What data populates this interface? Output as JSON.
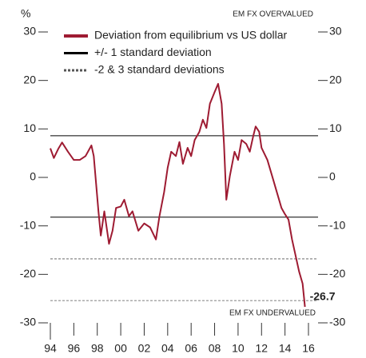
{
  "chart_data": {
    "type": "line",
    "y_unit": "%",
    "top_note": "EM FX OVERVALUED",
    "bottom_note": "EM FX UNDERVALUED",
    "x": [
      1994.0,
      1994.3,
      1994.7,
      1995.0,
      1995.5,
      1996.0,
      1996.5,
      1997.0,
      1997.5,
      1997.7,
      1997.9,
      1998.1,
      1998.3,
      1998.6,
      1999.0,
      1999.3,
      1999.6,
      2000.0,
      2000.3,
      2000.7,
      2001.0,
      2001.5,
      2002.0,
      2002.5,
      2003.0,
      2003.3,
      2003.7,
      2004.0,
      2004.3,
      2004.7,
      2005.0,
      2005.3,
      2005.7,
      2006.0,
      2006.3,
      2006.7,
      2007.0,
      2007.3,
      2007.6,
      2008.0,
      2008.3,
      2008.6,
      2008.8,
      2009.0,
      2009.3,
      2009.7,
      2010.0,
      2010.3,
      2010.7,
      2011.0,
      2011.3,
      2011.5,
      2011.8,
      2012.0,
      2012.5,
      2013.0,
      2013.3,
      2013.7,
      2014.0,
      2014.3,
      2014.6,
      2014.9,
      2015.2,
      2015.5,
      2015.7
    ],
    "series": [
      {
        "name": "Deviation from equilibrium vs US dollar",
        "color": "#9e1b32",
        "values": [
          6,
          4,
          6,
          7.2,
          5.3,
          3.6,
          3.6,
          4.4,
          6.6,
          4.4,
          -1.3,
          -7,
          -12,
          -7,
          -13.7,
          -11,
          -6.3,
          -6,
          -4.6,
          -8,
          -7,
          -11,
          -9.5,
          -10.3,
          -12.8,
          -8,
          -3,
          2,
          5.3,
          4.4,
          7.3,
          2.8,
          6.1,
          4.4,
          7.7,
          9.4,
          11.9,
          10.2,
          15.2,
          17.6,
          19.3,
          15.2,
          6.9,
          -4.6,
          0.3,
          5.3,
          3.6,
          7.7,
          6.9,
          5.3,
          8.6,
          10.5,
          9.4,
          6.1,
          3.6,
          -0.5,
          -3,
          -6.3,
          -7.6,
          -8.7,
          -12.8,
          -16.1,
          -19.4,
          -21.9,
          -26.7
        ]
      }
    ],
    "reference_lines": [
      {
        "name": "+/- 1 standard deviation",
        "style": "solid",
        "color": "#000000",
        "values": [
          8.6,
          -8.2
        ]
      },
      {
        "name": "-2 & 3 standard deviations",
        "style": "dashed",
        "color": "#555555",
        "values": [
          -16.8,
          -25.4
        ]
      }
    ],
    "xlim": [
      1994,
      2016
    ],
    "xticks": [
      {
        "value": 1994,
        "label": "94"
      },
      {
        "value": 1996,
        "label": "96"
      },
      {
        "value": 1998,
        "label": "98"
      },
      {
        "value": 2000,
        "label": "00"
      },
      {
        "value": 2002,
        "label": "02"
      },
      {
        "value": 2004,
        "label": "04"
      },
      {
        "value": 2006,
        "label": "06"
      },
      {
        "value": 2008,
        "label": "08"
      },
      {
        "value": 2010,
        "label": "10"
      },
      {
        "value": 2012,
        "label": "12"
      },
      {
        "value": 2014,
        "label": "14"
      },
      {
        "value": 2016,
        "label": "16"
      }
    ],
    "ylim": [
      -30,
      30
    ],
    "yticks": [
      30,
      20,
      10,
      0,
      -10,
      -20,
      -30
    ]
  }
}
